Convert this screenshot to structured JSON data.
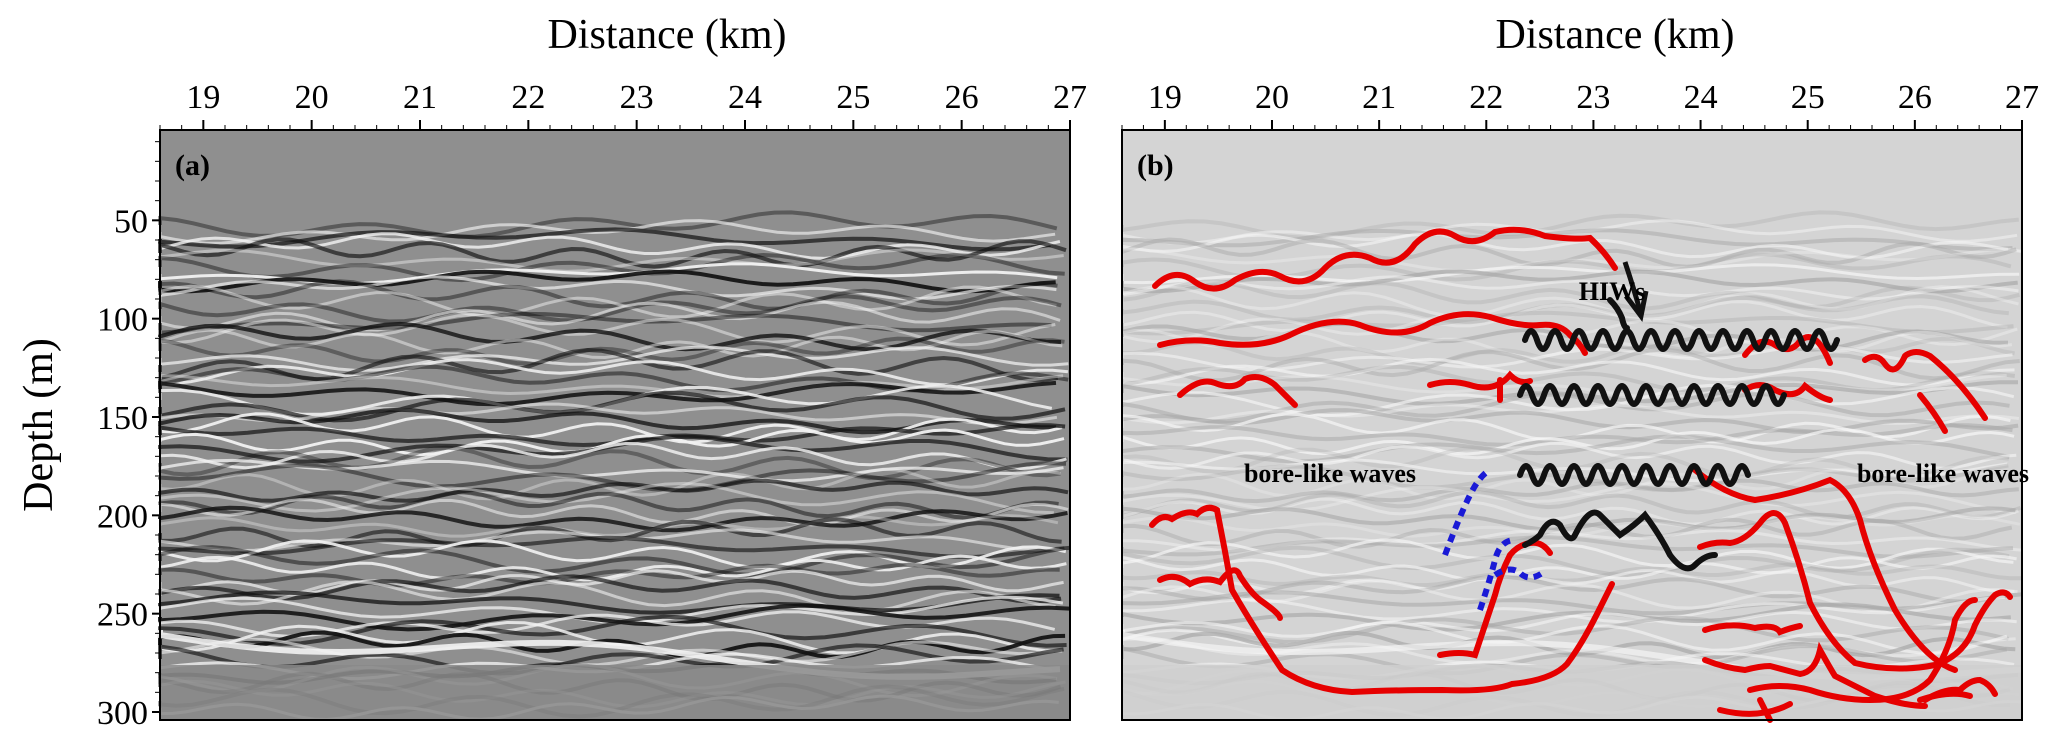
{
  "x_axis": {
    "label": "Distance (km)",
    "ticks": [
      "19",
      "20",
      "21",
      "22",
      "23",
      "24",
      "25",
      "26",
      "27"
    ],
    "range_km": [
      18.6,
      27.0
    ]
  },
  "y_axis": {
    "label": "Depth (m)",
    "ticks": [
      "50",
      "100",
      "150",
      "200",
      "250",
      "300"
    ],
    "range_m": [
      0,
      300
    ]
  },
  "panels": [
    {
      "label": "(a)",
      "description_type": "seismic reflection section (raw)"
    },
    {
      "label": "(b)",
      "description_type": "interpreted seismic section",
      "annotations": {
        "hiws": "HIWs",
        "bore_left": "bore-like waves",
        "bore_right": "bore-like waves"
      }
    }
  ],
  "colors": {
    "interpretation_red": "#e60000",
    "interpretation_black": "#111111",
    "interpretation_blue": "#1a1ad6",
    "panel_a_background": "#8f8f8f",
    "panel_b_background": "#d4d4d4"
  }
}
